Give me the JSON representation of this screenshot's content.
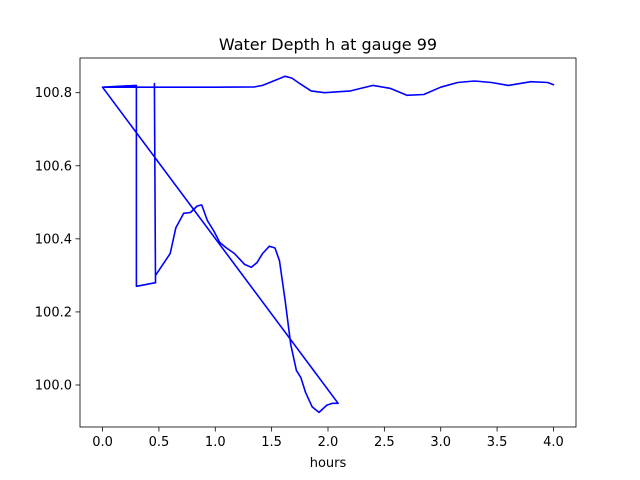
{
  "chart_data": {
    "type": "line",
    "title": "Water Depth h at gauge 99",
    "xlabel": "hours",
    "ylabel": "",
    "xlim": [
      -0.2,
      4.2
    ],
    "ylim": [
      99.885,
      100.895
    ],
    "xticks": [
      0.0,
      0.5,
      1.0,
      1.5,
      2.0,
      2.5,
      3.0,
      3.5,
      4.0
    ],
    "xtick_labels": [
      "0.0",
      "0.5",
      "1.0",
      "1.5",
      "2.0",
      "2.5",
      "3.0",
      "3.5",
      "4.0"
    ],
    "yticks": [
      100.0,
      100.2,
      100.4,
      100.6,
      100.8
    ],
    "ytick_labels": [
      "100.0",
      "100.2",
      "100.4",
      "100.6",
      "100.8"
    ],
    "grid": false,
    "legend": "none",
    "series": [
      {
        "color": "#0000ff",
        "x": [
          0.0,
          0.3,
          0.3,
          0.47,
          0.46,
          0.47,
          0.47,
          0.6,
          0.65,
          0.72,
          0.78,
          0.84,
          0.88,
          0.93,
          0.99,
          1.04,
          1.1,
          1.17,
          1.26,
          1.32,
          1.37,
          1.42,
          1.48,
          1.53,
          1.57,
          1.62,
          1.67,
          1.72,
          1.76,
          1.8,
          1.86,
          1.92,
          1.99,
          2.04,
          2.09,
          0.0,
          0.3,
          0.47,
          1.0,
          1.35,
          1.42,
          1.5,
          1.62,
          1.68,
          1.75,
          1.85,
          1.97,
          2.2,
          2.4,
          2.55,
          2.7,
          2.85,
          3.0,
          3.15,
          3.3,
          3.45,
          3.6,
          3.8,
          3.95,
          4.0
        ],
        "y": [
          100.815,
          100.82,
          100.27,
          100.28,
          100.825,
          100.28,
          100.3,
          100.36,
          100.43,
          100.47,
          100.472,
          100.49,
          100.493,
          100.45,
          100.42,
          100.39,
          100.375,
          100.36,
          100.33,
          100.322,
          100.335,
          100.36,
          100.38,
          100.375,
          100.34,
          100.23,
          100.11,
          100.04,
          100.02,
          99.98,
          99.94,
          99.925,
          99.945,
          99.95,
          99.95,
          100.815,
          100.815,
          100.815,
          100.815,
          100.816,
          100.82,
          100.83,
          100.845,
          100.84,
          100.825,
          100.805,
          100.8,
          100.805,
          100.82,
          100.812,
          100.793,
          100.795,
          100.815,
          100.828,
          100.832,
          100.828,
          100.82,
          100.83,
          100.828,
          100.822
        ]
      }
    ]
  }
}
